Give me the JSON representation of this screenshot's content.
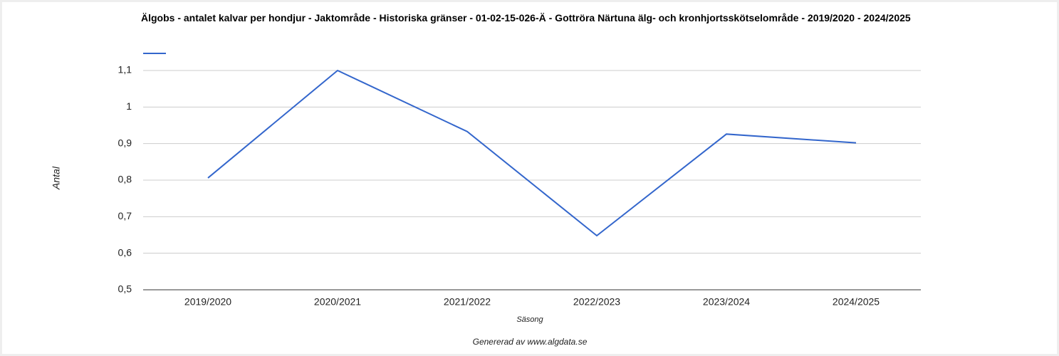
{
  "chart_data": {
    "type": "line",
    "title": "Älgobs - antalet kalvar per hondjur - Jaktområde - Historiska gränser - 01-02-15-026-Ä - Gottröra Närtuna älg- och kronhjortsskötselområde - 2019/2020 - 2024/2025",
    "x_label": "Säsong",
    "y_label": "Antal",
    "footer": "Genererad av www.algdata.se",
    "categories": [
      "2019/2020",
      "2020/2021",
      "2021/2022",
      "2022/2023",
      "2023/2024",
      "2024/2025"
    ],
    "series": [
      {
        "color": "#3366cc",
        "values": [
          0.806,
          1.1,
          0.933,
          0.648,
          0.926,
          0.902
        ]
      }
    ],
    "ylim": [
      0.5,
      1.1
    ],
    "yticks": [
      {
        "value": 0.5,
        "label": "0,5"
      },
      {
        "value": 0.6,
        "label": "0,6"
      },
      {
        "value": 0.7,
        "label": "0,7"
      },
      {
        "value": 0.8,
        "label": "0,8"
      },
      {
        "value": 0.9,
        "label": "0,9"
      },
      1,
      {
        "value": 1.1,
        "label": "1,1"
      }
    ],
    "grid": true
  }
}
